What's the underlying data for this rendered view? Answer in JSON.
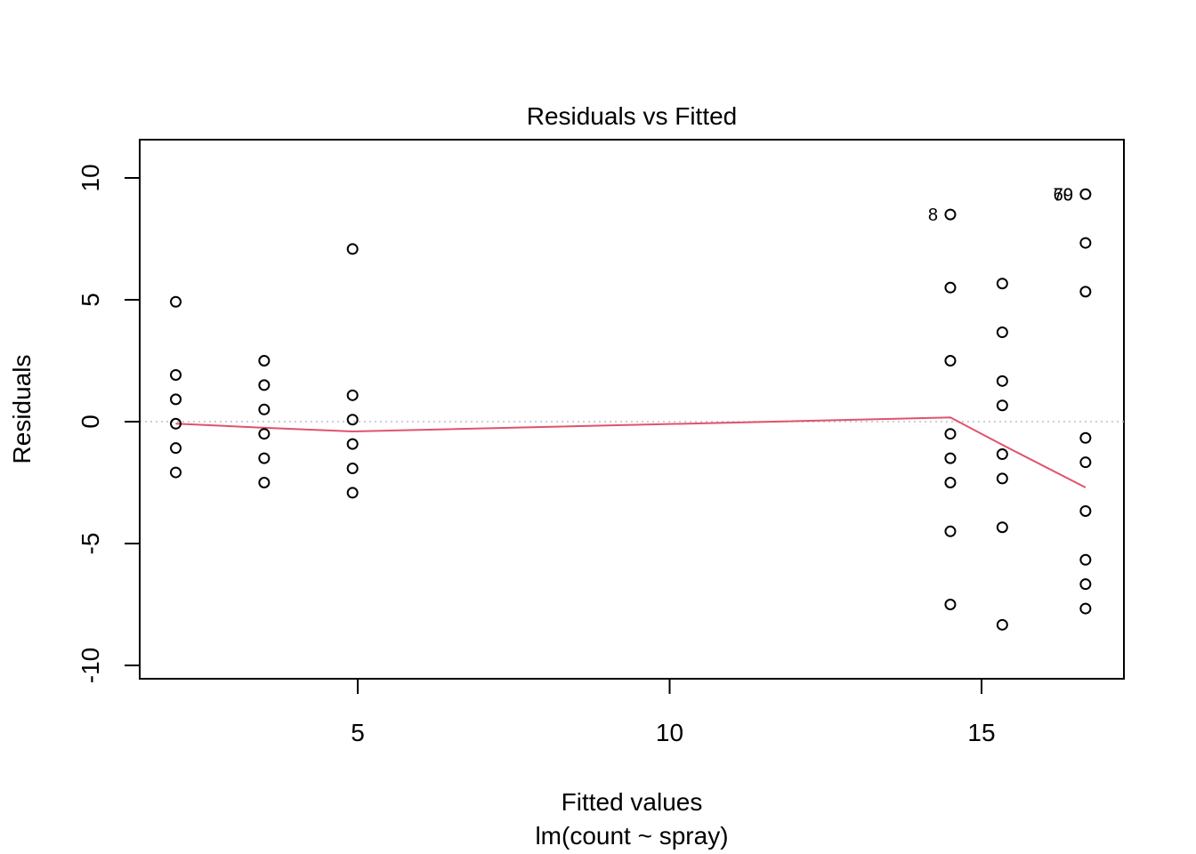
{
  "chart_data": {
    "type": "scatter",
    "title": "Residuals vs Fitted",
    "xlabel": "Fitted values",
    "subtitle": "lm(count ~ spray)",
    "ylabel": "Residuals",
    "xlim": [
      1.7,
      17.4
    ],
    "ylim": [
      -10.5,
      11.2
    ],
    "x_ticks": [
      5,
      10,
      15
    ],
    "y_ticks": [
      -10,
      -5,
      0,
      5,
      10
    ],
    "grid": false,
    "reference_line": {
      "y": 0,
      "style": "dotted",
      "color": "#bebebe"
    },
    "smooth_color": "#df536b",
    "smooth": [
      {
        "x": 2.083,
        "y": -0.08
      },
      {
        "x": 3.5,
        "y": -0.25
      },
      {
        "x": 4.917,
        "y": -0.4
      },
      {
        "x": 14.5,
        "y": 0.17
      },
      {
        "x": 15.333,
        "y": -0.95
      },
      {
        "x": 16.667,
        "y": -2.7
      }
    ],
    "points": [
      {
        "x": 2.083,
        "y": 4.917
      },
      {
        "x": 2.083,
        "y": 1.917
      },
      {
        "x": 2.083,
        "y": 0.917
      },
      {
        "x": 2.083,
        "y": -0.083
      },
      {
        "x": 2.083,
        "y": -1.083
      },
      {
        "x": 2.083,
        "y": -2.083
      },
      {
        "x": 3.5,
        "y": 2.5
      },
      {
        "x": 3.5,
        "y": 1.5
      },
      {
        "x": 3.5,
        "y": 0.5
      },
      {
        "x": 3.5,
        "y": -0.5
      },
      {
        "x": 3.5,
        "y": -1.5
      },
      {
        "x": 3.5,
        "y": -2.5
      },
      {
        "x": 4.917,
        "y": 7.083
      },
      {
        "x": 4.917,
        "y": 1.083
      },
      {
        "x": 4.917,
        "y": 0.083
      },
      {
        "x": 4.917,
        "y": -0.917
      },
      {
        "x": 4.917,
        "y": -1.917
      },
      {
        "x": 4.917,
        "y": -2.917
      },
      {
        "x": 14.5,
        "y": 8.5
      },
      {
        "x": 14.5,
        "y": 5.5
      },
      {
        "x": 14.5,
        "y": 2.5
      },
      {
        "x": 14.5,
        "y": -0.5
      },
      {
        "x": 14.5,
        "y": -1.5
      },
      {
        "x": 14.5,
        "y": -2.5
      },
      {
        "x": 14.5,
        "y": -4.5
      },
      {
        "x": 14.5,
        "y": -7.5
      },
      {
        "x": 15.333,
        "y": 5.667
      },
      {
        "x": 15.333,
        "y": 3.667
      },
      {
        "x": 15.333,
        "y": 1.667
      },
      {
        "x": 15.333,
        "y": 0.667
      },
      {
        "x": 15.333,
        "y": -1.333
      },
      {
        "x": 15.333,
        "y": -2.333
      },
      {
        "x": 15.333,
        "y": -4.333
      },
      {
        "x": 15.333,
        "y": -8.333
      },
      {
        "x": 16.667,
        "y": 9.333
      },
      {
        "x": 16.667,
        "y": 7.333
      },
      {
        "x": 16.667,
        "y": 5.333
      },
      {
        "x": 16.667,
        "y": -0.667
      },
      {
        "x": 16.667,
        "y": -1.667
      },
      {
        "x": 16.667,
        "y": -3.667
      },
      {
        "x": 16.667,
        "y": -5.667
      },
      {
        "x": 16.667,
        "y": -6.667
      },
      {
        "x": 16.667,
        "y": -7.667
      }
    ],
    "point_labels": [
      {
        "text": "8",
        "x": 14.5,
        "y": 8.5
      },
      {
        "text": "70",
        "x": 16.667,
        "y": 9.333
      },
      {
        "text": "69",
        "x": 16.667,
        "y": 9.333
      }
    ]
  }
}
